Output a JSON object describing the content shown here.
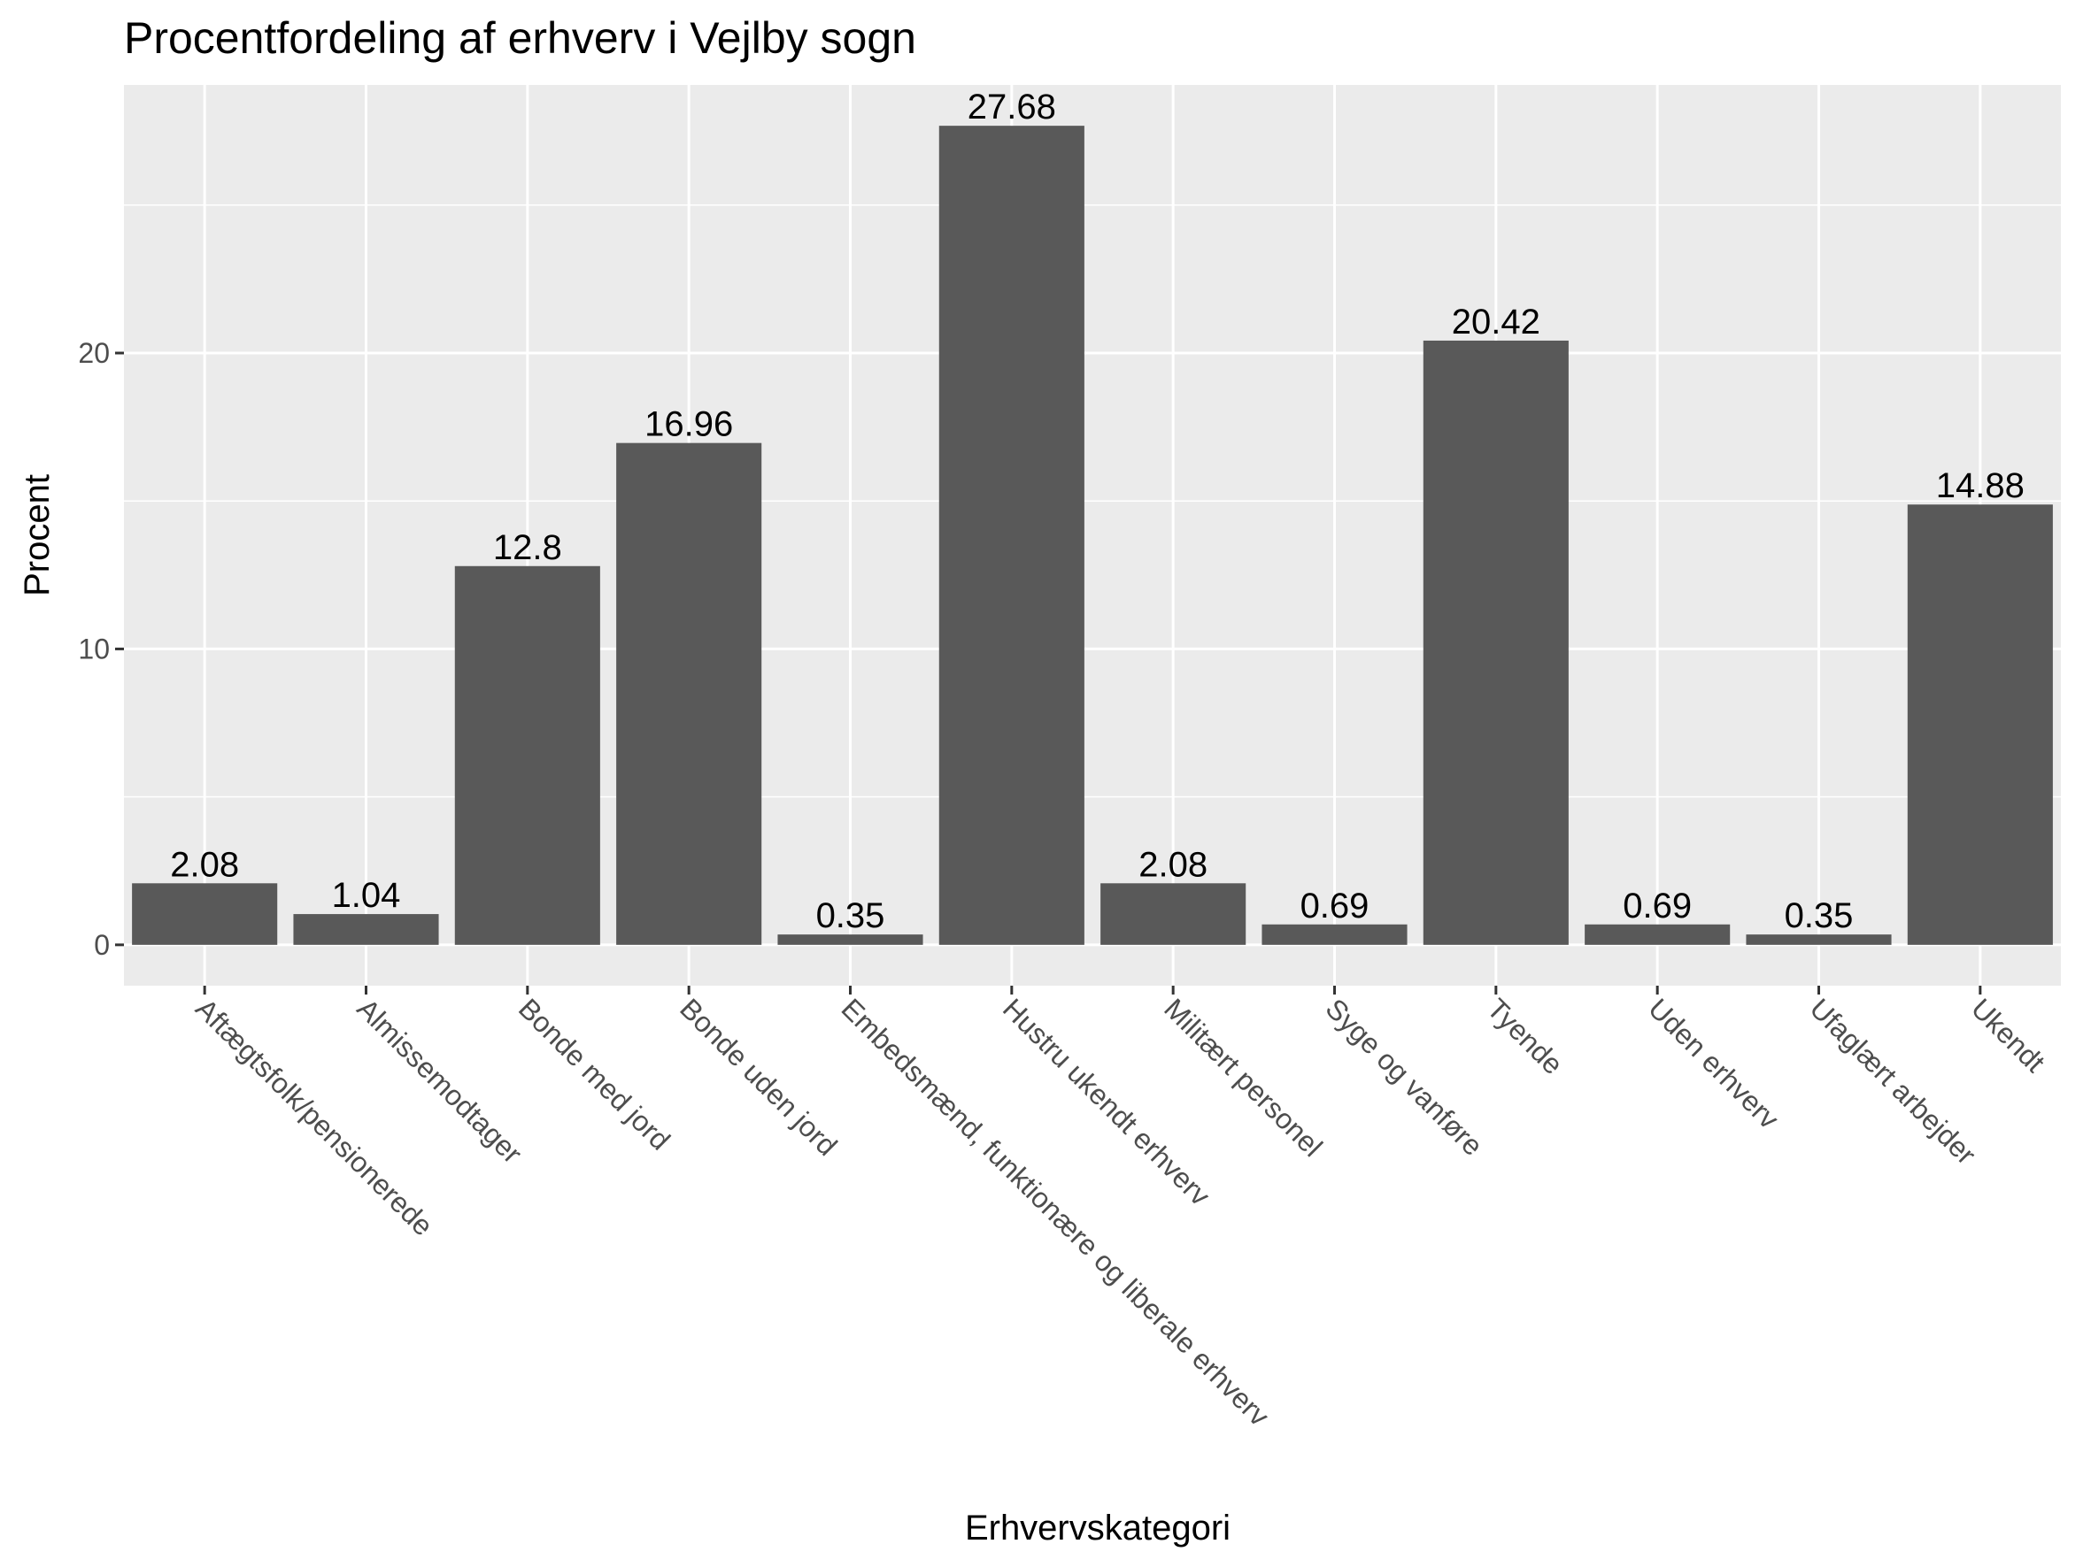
{
  "chart_data": {
    "type": "bar",
    "title": "Procentfordeling af erhverv i Vejlby sogn",
    "xlabel": "Erhvervskategori",
    "ylabel": "Procent",
    "categories": [
      "Aftægtsfolk/pensionerede",
      "Almissemodtager",
      "Bonde med jord",
      "Bonde uden jord",
      "Embedsmænd, funktionære og liberale erhverv",
      "Hustru ukendt erhverv",
      "Militært personel",
      "Syge og vanføre",
      "Tyende",
      "Uden erhverv",
      "Ufaglært arbejder",
      "Ukendt"
    ],
    "values": [
      2.08,
      1.04,
      12.8,
      16.96,
      0.35,
      27.68,
      2.08,
      0.69,
      20.42,
      0.69,
      0.35,
      14.88
    ],
    "labels": [
      "2.08",
      "1.04",
      "12.8",
      "16.96",
      "0.35",
      "27.68",
      "2.08",
      "0.69",
      "20.42",
      "0.69",
      "0.35",
      "14.88"
    ],
    "yticks": [
      0,
      10,
      20
    ],
    "ylim": [
      -1.38,
      29.06
    ],
    "grid": true,
    "legend": "none",
    "colors": {
      "bar": "#595959",
      "panel": "#ebebeb",
      "grid": "#ffffff",
      "tick": "#333333"
    }
  }
}
